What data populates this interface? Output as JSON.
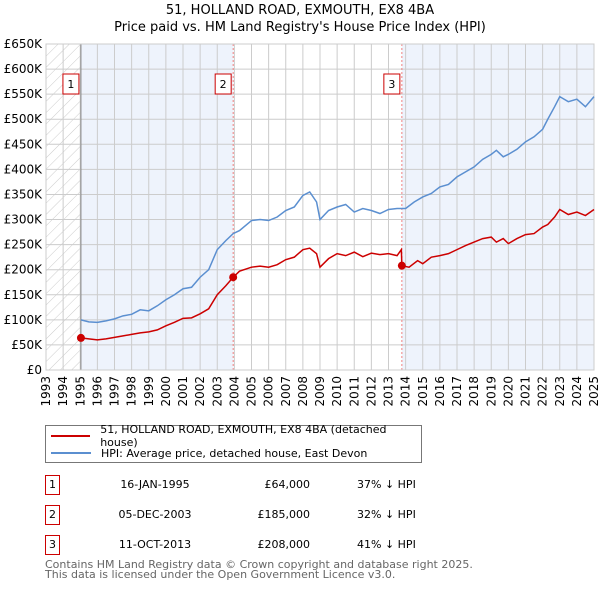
{
  "title": "51, HOLLAND ROAD, EXMOUTH, EX8 4BA",
  "subtitle": "Price paid vs. HM Land Registry's House Price Index (HPI)",
  "chart_data": {
    "type": "line",
    "title": "51, HOLLAND ROAD, EXMOUTH, EX8 4BA — Price paid vs. HM Land Registry's House Price Index (HPI)",
    "xlim": [
      1993,
      2025
    ],
    "ylim": [
      0,
      650000
    ],
    "yticks": [
      0,
      50000,
      100000,
      150000,
      200000,
      250000,
      300000,
      350000,
      400000,
      450000,
      500000,
      550000,
      600000,
      650000
    ],
    "ytick_labels": [
      "£0",
      "£50K",
      "£100K",
      "£150K",
      "£200K",
      "£250K",
      "£300K",
      "£350K",
      "£400K",
      "£450K",
      "£500K",
      "£550K",
      "£600K",
      "£650K"
    ],
    "xticks": [
      1993,
      1994,
      1995,
      1996,
      1997,
      1998,
      1999,
      2000,
      2001,
      2002,
      2003,
      2004,
      2005,
      2006,
      2007,
      2008,
      2009,
      2010,
      2011,
      2012,
      2013,
      2014,
      2015,
      2016,
      2017,
      2018,
      2019,
      2020,
      2021,
      2022,
      2023,
      2024,
      2025
    ],
    "grid": true,
    "colors": {
      "property": "#cc0000",
      "hpi": "#5b8fd0",
      "shade": "#eef3fc"
    },
    "series": [
      {
        "name": "51, HOLLAND ROAD, EXMOUTH, EX8 4BA (detached house)",
        "x": [
          1995.04,
          1995.5,
          1996,
          1996.5,
          1997,
          1997.5,
          1998,
          1998.5,
          1999,
          1999.5,
          2000,
          2000.5,
          2001,
          2001.5,
          2002,
          2002.5,
          2003,
          2003.5,
          2003.93,
          2004.3,
          2005,
          2005.5,
          2006,
          2006.5,
          2007,
          2007.5,
          2008,
          2008.4,
          2008.8,
          2009,
          2009.5,
          2010,
          2010.5,
          2011,
          2011.5,
          2012,
          2012.5,
          2013,
          2013.5,
          2013.75,
          2013.78,
          2014.2,
          2014.7,
          2015,
          2015.5,
          2016,
          2016.5,
          2017,
          2017.5,
          2018,
          2018.5,
          2019,
          2019.3,
          2019.7,
          2020,
          2020.5,
          2021,
          2021.5,
          2022,
          2022.3,
          2022.7,
          2023,
          2023.5,
          2024,
          2024.5,
          2025
        ],
        "values": [
          64000,
          62000,
          60000,
          62000,
          65000,
          68000,
          71000,
          74000,
          76000,
          80000,
          88000,
          95000,
          103000,
          104000,
          112000,
          122000,
          150000,
          168000,
          185000,
          197000,
          205000,
          207000,
          205000,
          210000,
          220000,
          225000,
          240000,
          243000,
          232000,
          205000,
          222000,
          232000,
          228000,
          235000,
          226000,
          233000,
          230000,
          232000,
          228000,
          240000,
          208000,
          205000,
          218000,
          212000,
          225000,
          228000,
          232000,
          240000,
          248000,
          255000,
          262000,
          265000,
          255000,
          262000,
          252000,
          262000,
          270000,
          272000,
          285000,
          290000,
          305000,
          320000,
          310000,
          315000,
          308000,
          320000
        ]
      },
      {
        "name": "HPI: Average price, detached house, East Devon",
        "x": [
          1995.04,
          1995.5,
          1996,
          1996.5,
          1997,
          1997.5,
          1998,
          1998.5,
          1999,
          1999.5,
          2000,
          2000.5,
          2001,
          2001.5,
          2002,
          2002.5,
          2003,
          2003.5,
          2003.93,
          2004.3,
          2005,
          2005.5,
          2006,
          2006.5,
          2007,
          2007.5,
          2008,
          2008.4,
          2008.8,
          2009,
          2009.5,
          2010,
          2010.5,
          2011,
          2011.5,
          2012,
          2012.5,
          2013,
          2013.5,
          2014,
          2014.5,
          2015,
          2015.5,
          2016,
          2016.5,
          2017,
          2017.5,
          2018,
          2018.5,
          2019,
          2019.3,
          2019.7,
          2020,
          2020.5,
          2021,
          2021.5,
          2022,
          2022.3,
          2022.7,
          2023,
          2023.5,
          2024,
          2024.5,
          2025
        ],
        "values": [
          100000,
          96000,
          95000,
          98000,
          102000,
          108000,
          111000,
          120000,
          118000,
          128000,
          140000,
          150000,
          162000,
          165000,
          185000,
          200000,
          240000,
          258000,
          272000,
          278000,
          298000,
          300000,
          298000,
          305000,
          318000,
          325000,
          348000,
          355000,
          335000,
          300000,
          318000,
          325000,
          330000,
          315000,
          322000,
          318000,
          312000,
          320000,
          322000,
          322000,
          335000,
          345000,
          352000,
          365000,
          370000,
          385000,
          395000,
          405000,
          420000,
          430000,
          438000,
          425000,
          430000,
          440000,
          455000,
          465000,
          480000,
          500000,
          525000,
          545000,
          535000,
          540000,
          525000,
          545000
        ]
      }
    ],
    "annotations": [
      {
        "label": "1",
        "x": 1995.04,
        "value": 64000
      },
      {
        "label": "2",
        "x": 2003.93,
        "value": 185000
      },
      {
        "label": "3",
        "x": 2013.78,
        "value": 208000
      }
    ]
  },
  "legend": {
    "property": "51, HOLLAND ROAD, EXMOUTH, EX8 4BA (detached house)",
    "hpi": "HPI: Average price, detached house, East Devon"
  },
  "sales": [
    {
      "num": "1",
      "date": "16-JAN-1995",
      "price": "£64,000",
      "hpi": "37% ↓ HPI"
    },
    {
      "num": "2",
      "date": "05-DEC-2003",
      "price": "£185,000",
      "hpi": "32% ↓ HPI"
    },
    {
      "num": "3",
      "date": "11-OCT-2013",
      "price": "£208,000",
      "hpi": "41% ↓ HPI"
    }
  ],
  "footer": {
    "line1": "Contains HM Land Registry data © Crown copyright and database right 2025.",
    "line2": "This data is licensed under the Open Government Licence v3.0."
  }
}
